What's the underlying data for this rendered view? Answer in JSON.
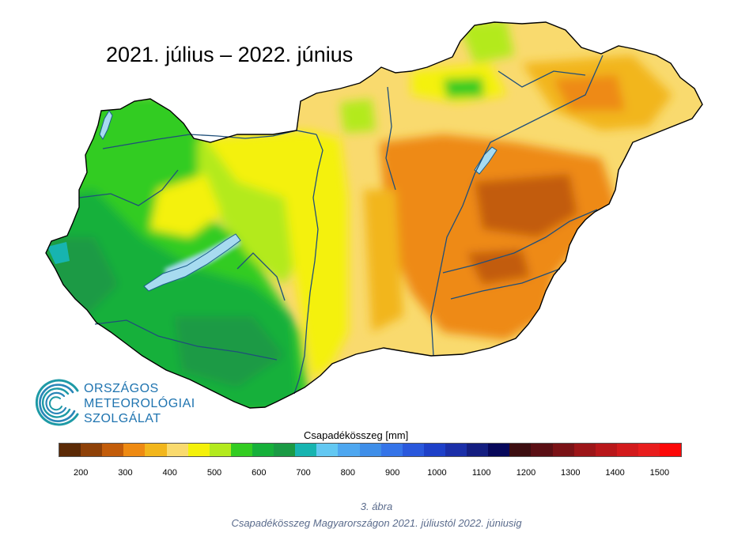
{
  "map": {
    "title": "2021. július – 2022. június",
    "region": "Magyarország"
  },
  "logo": {
    "line1": "ORSZÁGOS",
    "line2": "METEOROLÓGIAI",
    "line3": "SZOLGÁLAT",
    "color": "#1f74b0"
  },
  "legend": {
    "title": "Csapadékösszeg [mm]",
    "labels": [
      "200",
      "300",
      "400",
      "500",
      "600",
      "700",
      "800",
      "900",
      "1000",
      "1100",
      "1200",
      "1300",
      "1400",
      "1500"
    ],
    "colors": [
      "#5b2a06",
      "#8e4108",
      "#c25c0a",
      "#ee8a12",
      "#f2b61c",
      "#f9da6e",
      "#f4f10a",
      "#b3ea1e",
      "#33cc22",
      "#16b03a",
      "#1a9a44",
      "#17b4b0",
      "#63c8f2",
      "#4ea7f0",
      "#3f8ee8",
      "#3574e8",
      "#2a58dc",
      "#1e40c8",
      "#1b2fa8",
      "#141e80",
      "#07085a",
      "#3c0d10",
      "#5a0f14",
      "#7a1216",
      "#9c1518",
      "#b8171a",
      "#d21a1c",
      "#e81d1d",
      "#fc0808"
    ]
  },
  "caption": {
    "figure": "3. ábra",
    "text": "Csapadékösszeg Magyarországon 2021. júliustól 2022. júniusig"
  }
}
